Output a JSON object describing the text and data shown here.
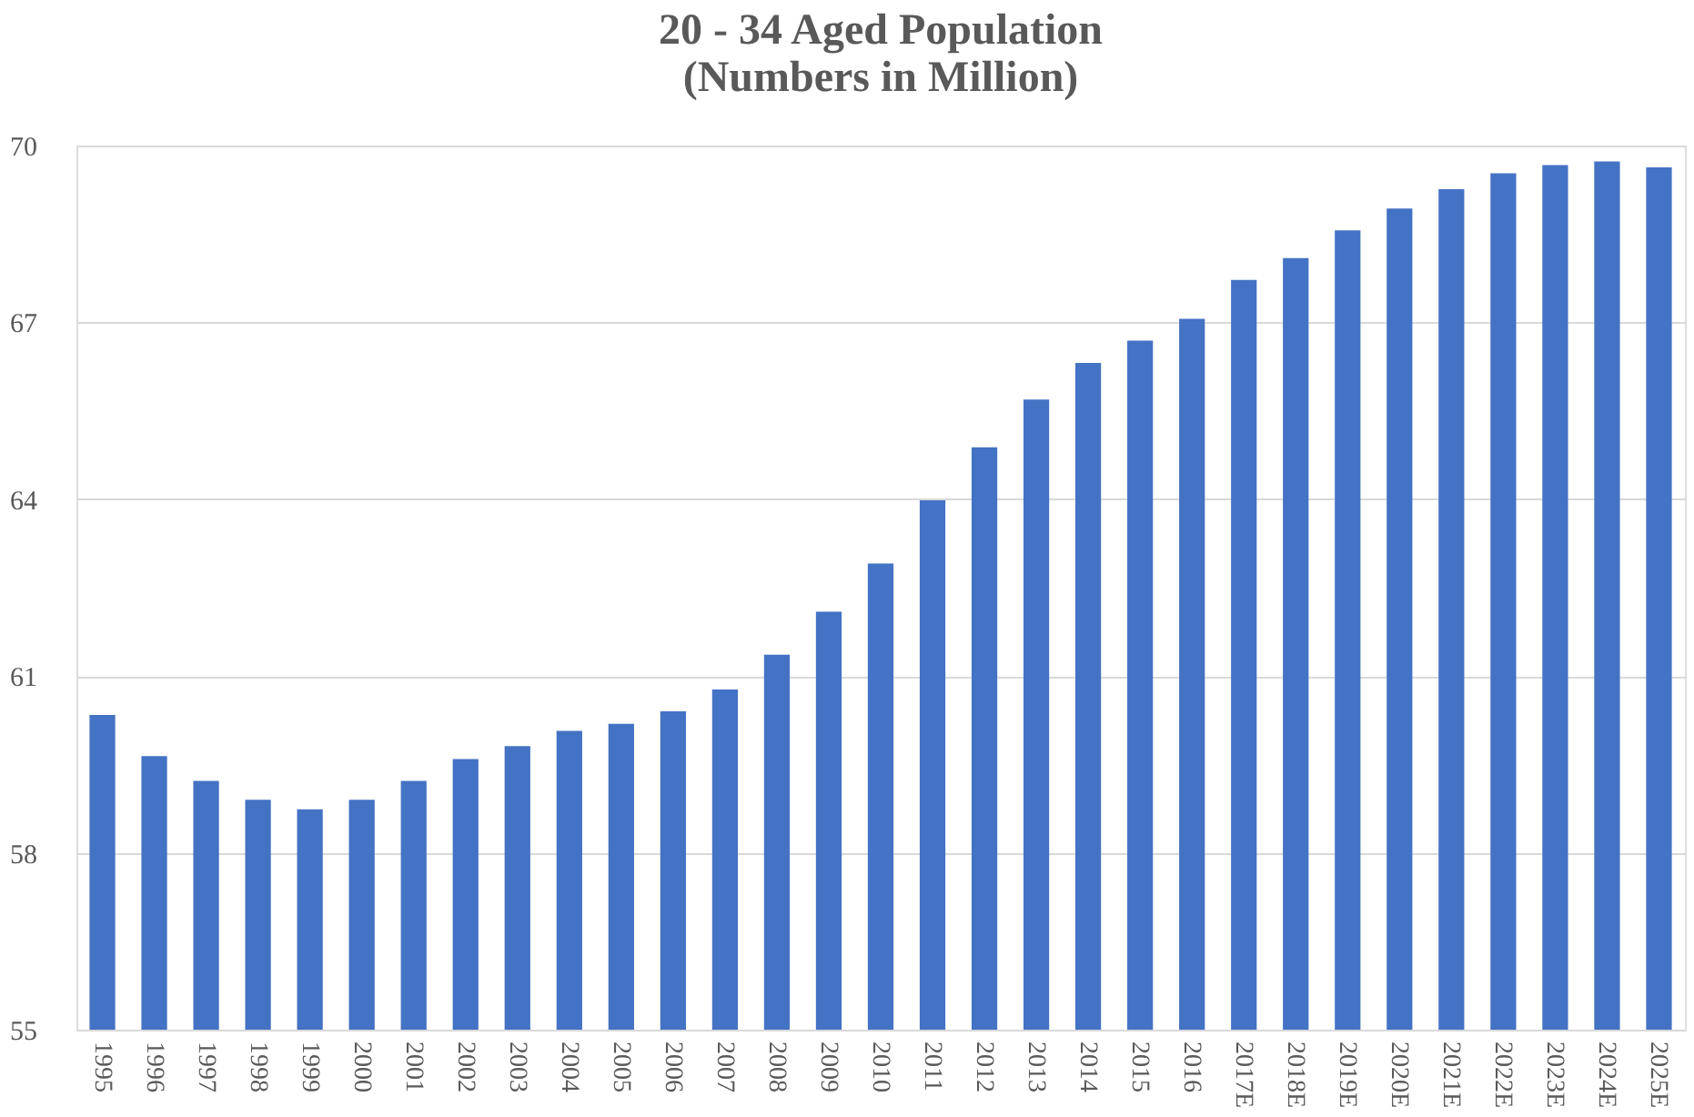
{
  "chart_data": {
    "type": "bar",
    "title": [
      "20 - 34 Aged Population",
      "(Numbers in Million)"
    ],
    "categories": [
      "1995",
      "1996",
      "1997",
      "1998",
      "1999",
      "2000",
      "2001",
      "2002",
      "2003",
      "2004",
      "2005",
      "2006",
      "2007",
      "2008",
      "2009",
      "2010",
      "2011",
      "2012",
      "2013",
      "2014",
      "2015",
      "2016",
      "2017E",
      "2018E",
      "2019E",
      "2020E",
      "2021E",
      "2022E",
      "2023E",
      "2024E",
      "2025E"
    ],
    "values": [
      60.34,
      59.64,
      59.22,
      58.9,
      58.74,
      58.9,
      59.22,
      59.59,
      59.81,
      60.07,
      60.19,
      60.4,
      60.77,
      61.36,
      62.09,
      62.91,
      63.98,
      64.88,
      65.69,
      66.31,
      66.69,
      67.06,
      67.72,
      68.09,
      68.56,
      68.93,
      69.26,
      69.53,
      69.67,
      69.73,
      69.63
    ],
    "color": "#4472c4",
    "ylim": [
      55,
      70
    ],
    "yticks": [
      55,
      58,
      61,
      64,
      67,
      70
    ],
    "grid": "y"
  }
}
